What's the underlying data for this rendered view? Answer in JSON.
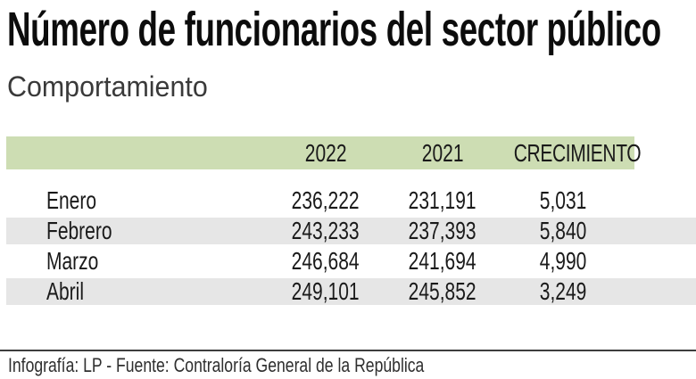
{
  "title": "Número de funcionarios del sector público",
  "subtitle": "Comportamiento",
  "table": {
    "columns": [
      "",
      "2022",
      "2021",
      "CRECIMIENTO"
    ],
    "rows": [
      {
        "month": "Enero",
        "y2022": "236,222",
        "y2021": "231,191",
        "growth": "5,031"
      },
      {
        "month": "Febrero",
        "y2022": "243,233",
        "y2021": "237,393",
        "growth": "5,840"
      },
      {
        "month": "Marzo",
        "y2022": "246,684",
        "y2021": "241,694",
        "growth": "4,990"
      },
      {
        "month": "Abril",
        "y2022": "249,101",
        "y2021": "245,852",
        "growth": "3,249"
      }
    ]
  },
  "footer": {
    "credit": "Infografía: LP - Fuente: Contraloría General de la República"
  },
  "colors": {
    "header_bg": "#cdddb3",
    "stripe_bg": "#e6e6e6",
    "text": "#1a1a1a",
    "divider": "#3d3d3d"
  },
  "chart_data": {
    "type": "table",
    "title": "Número de funcionarios del sector público",
    "subtitle": "Comportamiento",
    "columns": [
      "",
      "2022",
      "2021",
      "CRECIMIENTO"
    ],
    "categories": [
      "Enero",
      "Febrero",
      "Marzo",
      "Abril"
    ],
    "series": [
      {
        "name": "2022",
        "values": [
          236222,
          243233,
          246684,
          249101
        ]
      },
      {
        "name": "2021",
        "values": [
          231191,
          237393,
          241694,
          245852
        ]
      },
      {
        "name": "CRECIMIENTO",
        "values": [
          5031,
          5840,
          4990,
          3249
        ]
      }
    ],
    "source": "Infografía: LP - Fuente: Contraloría General de la República"
  }
}
